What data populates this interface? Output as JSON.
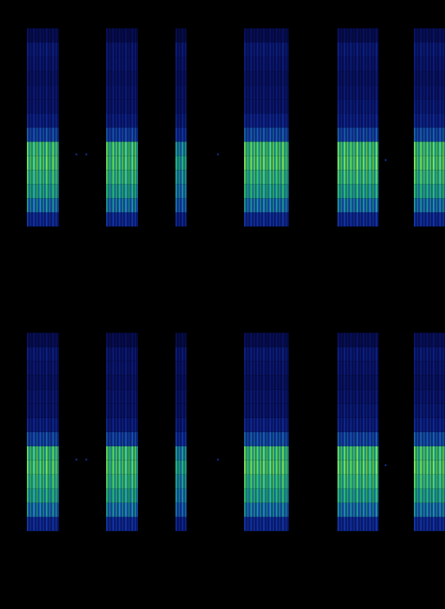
{
  "chart_data": [
    {
      "type": "heatmap",
      "tick_labels": false,
      "grid": false,
      "xlim": [
        0,
        629
      ],
      "ylim": [
        0,
        430
      ],
      "color_range": [
        0,
        1
      ],
      "freq_bins": [
        110,
        130,
        150,
        170,
        190,
        210,
        230,
        250,
        270,
        290,
        310,
        330,
        350,
        370,
        390
      ],
      "segments": [
        {
          "start": 38,
          "end": 83,
          "intensity": [
            0.3,
            0.55,
            0.72,
            0.8,
            0.88,
            0.84,
            0.4,
            0.25,
            0.2,
            0.2,
            0.18,
            0.2,
            0.22,
            0.15
          ]
        },
        {
          "start": 150,
          "end": 195,
          "intensity": [
            0.3,
            0.55,
            0.7,
            0.8,
            0.86,
            0.84,
            0.38,
            0.24,
            0.2,
            0.2,
            0.18,
            0.2,
            0.2,
            0.14
          ]
        },
        {
          "start": 248,
          "end": 264,
          "intensity": [
            0.25,
            0.45,
            0.55,
            0.62,
            0.7,
            0.6,
            0.3,
            0.22,
            0.18,
            0.18,
            0.16,
            0.18,
            0.2,
            0.12
          ]
        },
        {
          "start": 345,
          "end": 408,
          "intensity": [
            0.3,
            0.55,
            0.72,
            0.8,
            0.9,
            0.86,
            0.42,
            0.26,
            0.2,
            0.2,
            0.18,
            0.2,
            0.22,
            0.15
          ]
        },
        {
          "start": 477,
          "end": 535,
          "intensity": [
            0.3,
            0.55,
            0.72,
            0.82,
            0.9,
            0.86,
            0.4,
            0.25,
            0.22,
            0.2,
            0.18,
            0.2,
            0.22,
            0.15
          ]
        },
        {
          "start": 585,
          "end": 629,
          "intensity": [
            0.3,
            0.55,
            0.72,
            0.82,
            0.9,
            0.86,
            0.42,
            0.26,
            0.22,
            0.2,
            0.18,
            0.2,
            0.22,
            0.16
          ]
        }
      ],
      "points": [
        [
          108,
          212
        ],
        [
          122,
          212
        ],
        [
          308,
          212
        ],
        [
          545,
          204
        ]
      ]
    },
    {
      "type": "heatmap",
      "tick_labels": false,
      "grid": false,
      "xlim": [
        0,
        629
      ],
      "ylim": [
        0,
        430
      ],
      "color_range": [
        0,
        1
      ],
      "freq_bins": [
        110,
        130,
        150,
        170,
        190,
        210,
        230,
        250,
        270,
        290,
        310,
        330,
        350,
        370,
        390
      ],
      "segments": [
        {
          "start": 38,
          "end": 83,
          "intensity": [
            0.3,
            0.55,
            0.72,
            0.8,
            0.88,
            0.84,
            0.4,
            0.25,
            0.2,
            0.2,
            0.18,
            0.2,
            0.22,
            0.15
          ]
        },
        {
          "start": 150,
          "end": 195,
          "intensity": [
            0.3,
            0.55,
            0.7,
            0.8,
            0.86,
            0.84,
            0.38,
            0.24,
            0.2,
            0.2,
            0.18,
            0.2,
            0.2,
            0.14
          ]
        },
        {
          "start": 248,
          "end": 264,
          "intensity": [
            0.25,
            0.45,
            0.55,
            0.62,
            0.7,
            0.6,
            0.3,
            0.22,
            0.18,
            0.18,
            0.16,
            0.18,
            0.2,
            0.12
          ]
        },
        {
          "start": 345,
          "end": 408,
          "intensity": [
            0.3,
            0.55,
            0.72,
            0.8,
            0.9,
            0.86,
            0.42,
            0.26,
            0.2,
            0.2,
            0.18,
            0.2,
            0.22,
            0.15
          ]
        },
        {
          "start": 477,
          "end": 535,
          "intensity": [
            0.3,
            0.55,
            0.72,
            0.82,
            0.9,
            0.86,
            0.4,
            0.25,
            0.22,
            0.2,
            0.18,
            0.2,
            0.22,
            0.15
          ]
        },
        {
          "start": 585,
          "end": 629,
          "intensity": [
            0.3,
            0.55,
            0.72,
            0.82,
            0.9,
            0.86,
            0.42,
            0.26,
            0.22,
            0.2,
            0.18,
            0.2,
            0.22,
            0.16
          ]
        }
      ],
      "points": [
        [
          108,
          211
        ],
        [
          122,
          211
        ],
        [
          308,
          211
        ],
        [
          545,
          203
        ]
      ]
    }
  ]
}
